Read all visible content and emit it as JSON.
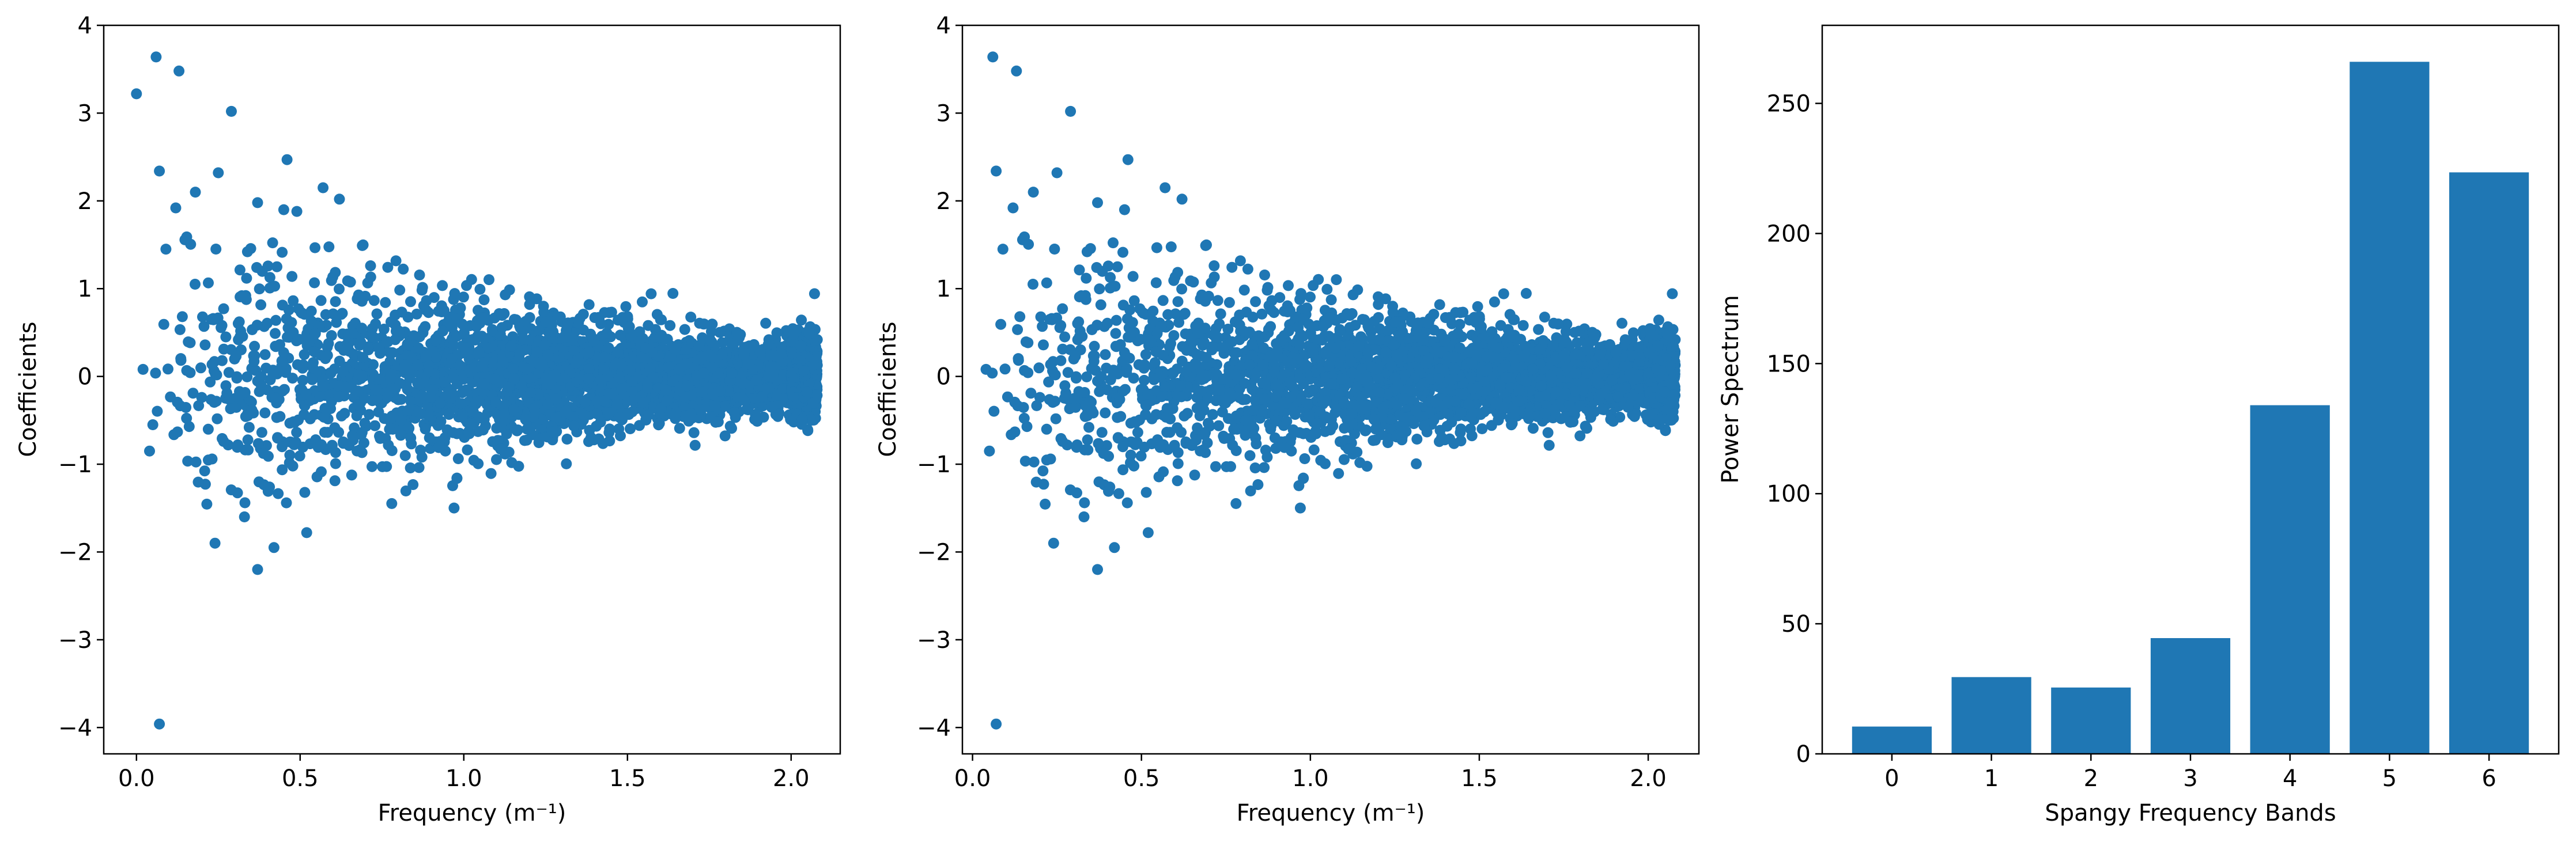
{
  "figure": {
    "background": "#ffffff",
    "marker_color": "#1f77b4"
  },
  "chart_data": [
    {
      "type": "scatter",
      "id": "left",
      "title": "",
      "xlabel": "Frequency (m⁻¹)",
      "ylabel": "Coefficients",
      "xlim": [
        -0.1,
        2.15
      ],
      "ylim": [
        -4.3,
        4.0
      ],
      "xticks": [
        0.0,
        0.5,
        1.0,
        1.5,
        2.0
      ],
      "xtick_labels": [
        "0.0",
        "0.5",
        "1.0",
        "1.5",
        "2.0"
      ],
      "yticks": [
        -4,
        -3,
        -2,
        -1,
        0,
        1,
        2,
        3,
        4
      ],
      "ytick_labels": [
        "−4",
        "−3",
        "−2",
        "−1",
        "0",
        "1",
        "2",
        "3",
        "4"
      ],
      "grid": false,
      "color": "#1f77b4",
      "notable_points": [
        {
          "x": 0.0,
          "y": 3.22
        },
        {
          "x": 0.06,
          "y": 3.64
        },
        {
          "x": 0.13,
          "y": 3.48
        },
        {
          "x": 0.29,
          "y": 3.02
        },
        {
          "x": 0.07,
          "y": 2.34
        },
        {
          "x": 0.25,
          "y": 2.32
        },
        {
          "x": 0.46,
          "y": 2.47
        },
        {
          "x": 0.57,
          "y": 2.15
        },
        {
          "x": 0.18,
          "y": 2.1
        },
        {
          "x": 0.62,
          "y": 2.02
        },
        {
          "x": 0.37,
          "y": 1.98
        },
        {
          "x": 0.12,
          "y": 1.92
        },
        {
          "x": 0.45,
          "y": 1.9
        },
        {
          "x": 0.49,
          "y": 1.88
        },
        {
          "x": 0.09,
          "y": 1.45
        },
        {
          "x": 0.02,
          "y": 0.08
        },
        {
          "x": 0.04,
          "y": -0.85
        },
        {
          "x": 0.05,
          "y": -0.55
        },
        {
          "x": 0.37,
          "y": -2.2
        },
        {
          "x": 0.42,
          "y": -1.95
        },
        {
          "x": 0.24,
          "y": -1.9
        },
        {
          "x": 0.33,
          "y": -1.6
        },
        {
          "x": 0.52,
          "y": -1.78
        },
        {
          "x": 0.07,
          "y": -3.96
        }
      ],
      "bulk_envelope": {
        "x_range": [
          0.05,
          2.08
        ],
        "spread_at_low_freq": 1.2,
        "spread_at_high_freq": 0.35
      }
    },
    {
      "type": "scatter",
      "id": "middle",
      "title": "",
      "xlabel": "Frequency (m⁻¹)",
      "ylabel": "Coefficients",
      "xlim": [
        -0.03,
        2.15
      ],
      "ylim": [
        -4.3,
        4.0
      ],
      "xticks": [
        0.0,
        0.5,
        1.0,
        1.5,
        2.0
      ],
      "xtick_labels": [
        "0.0",
        "0.5",
        "1.0",
        "1.5",
        "2.0"
      ],
      "yticks": [
        -4,
        -3,
        -2,
        -1,
        0,
        1,
        2,
        3,
        4
      ],
      "ytick_labels": [
        "−4",
        "−3",
        "−2",
        "−1",
        "0",
        "1",
        "2",
        "3",
        "4"
      ],
      "grid": false,
      "color": "#1f77b4",
      "notable_points": [
        {
          "x": 0.06,
          "y": 3.64
        },
        {
          "x": 0.13,
          "y": 3.48
        },
        {
          "x": 0.29,
          "y": 3.02
        },
        {
          "x": 0.07,
          "y": 2.34
        },
        {
          "x": 0.25,
          "y": 2.32
        },
        {
          "x": 0.46,
          "y": 2.47
        },
        {
          "x": 0.57,
          "y": 2.15
        },
        {
          "x": 0.18,
          "y": 2.1
        },
        {
          "x": 0.62,
          "y": 2.02
        },
        {
          "x": 0.37,
          "y": 1.98
        },
        {
          "x": 0.12,
          "y": 1.92
        },
        {
          "x": 0.45,
          "y": 1.9
        },
        {
          "x": 0.09,
          "y": 1.45
        },
        {
          "x": 0.04,
          "y": 0.08
        },
        {
          "x": 0.05,
          "y": -0.85
        },
        {
          "x": 0.37,
          "y": -2.2
        },
        {
          "x": 0.42,
          "y": -1.95
        },
        {
          "x": 0.24,
          "y": -1.9
        },
        {
          "x": 0.33,
          "y": -1.6
        },
        {
          "x": 0.52,
          "y": -1.78
        },
        {
          "x": 0.07,
          "y": -3.96
        }
      ],
      "bulk_envelope": {
        "x_range": [
          0.05,
          2.08
        ],
        "spread_at_low_freq": 1.2,
        "spread_at_high_freq": 0.35
      }
    },
    {
      "type": "bar",
      "id": "right",
      "title": "",
      "xlabel": "Spangy Frequency Bands",
      "ylabel": "Power Spectrum",
      "categories": [
        "0",
        "1",
        "2",
        "3",
        "4",
        "5",
        "6"
      ],
      "values": [
        10.5,
        29.5,
        25.5,
        44.5,
        134,
        266,
        223.5
      ],
      "ylim": [
        0,
        280
      ],
      "yticks": [
        0,
        50,
        100,
        150,
        200,
        250
      ],
      "ytick_labels": [
        "0",
        "50",
        "100",
        "150",
        "200",
        "250"
      ],
      "grid": false,
      "color": "#1f77b4"
    }
  ]
}
